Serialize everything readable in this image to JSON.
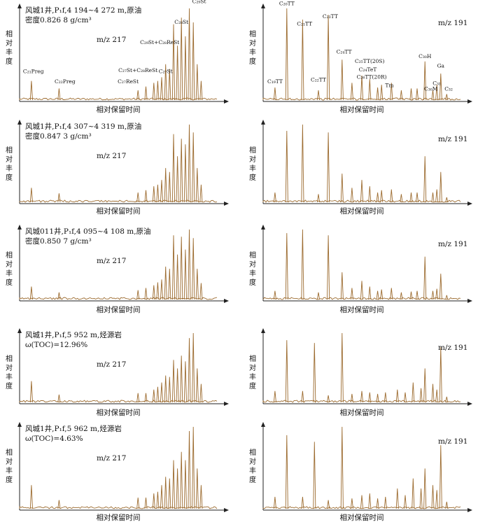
{
  "axis_text": {
    "ylabel_chars": [
      "相",
      "对",
      "丰",
      "度"
    ],
    "xlabel": "相对保留时间"
  },
  "chart_data": [
    {
      "type": "line",
      "panel": "row1-left",
      "info": [
        "风城1井,P₁f,4 194~4 272 m,原油",
        "密度0.826 8 g/cm³"
      ],
      "mz": "m/z 217",
      "xlabel": "相对保留时间",
      "ylabel": "相对丰度",
      "peaks": [
        {
          "x": 0.06,
          "h": 0.22
        },
        {
          "x": 0.2,
          "h": 0.14
        },
        {
          "x": 0.6,
          "h": 0.12
        },
        {
          "x": 0.64,
          "h": 0.16
        },
        {
          "x": 0.68,
          "h": 0.2
        },
        {
          "x": 0.7,
          "h": 0.22
        },
        {
          "x": 0.72,
          "h": 0.26
        },
        {
          "x": 0.74,
          "h": 0.4
        },
        {
          "x": 0.76,
          "h": 0.35
        },
        {
          "x": 0.78,
          "h": 0.83
        },
        {
          "x": 0.8,
          "h": 0.6
        },
        {
          "x": 0.82,
          "h": 0.9
        },
        {
          "x": 0.84,
          "h": 0.7
        },
        {
          "x": 0.86,
          "h": 1.0
        },
        {
          "x": 0.88,
          "h": 0.85
        },
        {
          "x": 0.9,
          "h": 0.4
        },
        {
          "x": 0.92,
          "h": 0.22
        }
      ],
      "peak_labels": [
        {
          "text": "C₂₁Preg",
          "x": 0.07,
          "h": 0.29
        },
        {
          "text": "C₂₂Preg",
          "x": 0.23,
          "h": 0.18
        },
        {
          "text": "C₂₇St+C₂₈ReSt",
          "x": 0.6,
          "h": 0.3
        },
        {
          "text": "C₂₇ReSt",
          "x": 0.55,
          "h": 0.18
        },
        {
          "text": "C₂₉St+C₂₈ReSt",
          "x": 0.71,
          "h": 0.6
        },
        {
          "text": "C₂₇St",
          "x": 0.74,
          "h": 0.29
        },
        {
          "text": "C₂₈St",
          "x": 0.82,
          "h": 0.82
        },
        {
          "text": "C₂₉St",
          "x": 0.91,
          "h": 1.04
        }
      ]
    },
    {
      "type": "line",
      "panel": "row1-right",
      "mz": "m/z 191",
      "xlabel": "相对保留时间",
      "ylabel": "相对丰度",
      "peaks": [
        {
          "x": 0.06,
          "h": 0.15
        },
        {
          "x": 0.12,
          "h": 1.0
        },
        {
          "x": 0.2,
          "h": 0.88
        },
        {
          "x": 0.28,
          "h": 0.12
        },
        {
          "x": 0.33,
          "h": 0.93
        },
        {
          "x": 0.4,
          "h": 0.45
        },
        {
          "x": 0.45,
          "h": 0.2
        },
        {
          "x": 0.5,
          "h": 0.28
        },
        {
          "x": 0.54,
          "h": 0.24
        },
        {
          "x": 0.58,
          "h": 0.15
        },
        {
          "x": 0.6,
          "h": 0.18
        },
        {
          "x": 0.65,
          "h": 0.2
        },
        {
          "x": 0.7,
          "h": 0.12
        },
        {
          "x": 0.75,
          "h": 0.14
        },
        {
          "x": 0.78,
          "h": 0.14
        },
        {
          "x": 0.82,
          "h": 0.43
        },
        {
          "x": 0.86,
          "h": 0.12
        },
        {
          "x": 0.88,
          "h": 0.18
        },
        {
          "x": 0.9,
          "h": 0.3
        },
        {
          "x": 0.93,
          "h": 0.08
        }
      ],
      "peak_labels": [
        {
          "text": "C₁₉TT",
          "x": 0.06,
          "h": 0.18
        },
        {
          "text": "C₂₀TT",
          "x": 0.12,
          "h": 1.02
        },
        {
          "text": "C₂₁TT",
          "x": 0.21,
          "h": 0.8
        },
        {
          "text": "C₂₂TT",
          "x": 0.28,
          "h": 0.2
        },
        {
          "text": "C₂₃TT",
          "x": 0.34,
          "h": 0.88
        },
        {
          "text": "C₂₄TT",
          "x": 0.41,
          "h": 0.5
        },
        {
          "text": "C₂₅TT(20S)",
          "x": 0.54,
          "h": 0.4
        },
        {
          "text": "C₂₄TeT",
          "x": 0.53,
          "h": 0.31
        },
        {
          "text": "C₂₆TT(20R)",
          "x": 0.55,
          "h": 0.23
        },
        {
          "text": "Tm",
          "x": 0.64,
          "h": 0.14
        },
        {
          "text": "C₃₀H",
          "x": 0.82,
          "h": 0.45
        },
        {
          "text": "Ga",
          "x": 0.9,
          "h": 0.35
        },
        {
          "text": "C₃₀M",
          "x": 0.85,
          "h": 0.1
        },
        {
          "text": "C₃₁",
          "x": 0.88,
          "h": 0.16
        },
        {
          "text": "C₃₂",
          "x": 0.94,
          "h": 0.1
        }
      ]
    },
    {
      "type": "line",
      "panel": "row2-left",
      "info": [
        "风城1井,P₁f,4 307~4 319 m,原油",
        "密度0.847 3 g/cm³"
      ],
      "mz": "m/z 217",
      "xlabel": "相对保留时间",
      "ylabel": "相对丰度",
      "peaks": [
        {
          "x": 0.06,
          "h": 0.2
        },
        {
          "x": 0.2,
          "h": 0.13
        },
        {
          "x": 0.6,
          "h": 0.14
        },
        {
          "x": 0.64,
          "h": 0.17
        },
        {
          "x": 0.68,
          "h": 0.22
        },
        {
          "x": 0.7,
          "h": 0.24
        },
        {
          "x": 0.72,
          "h": 0.3
        },
        {
          "x": 0.74,
          "h": 0.45
        },
        {
          "x": 0.76,
          "h": 0.4
        },
        {
          "x": 0.78,
          "h": 0.88
        },
        {
          "x": 0.8,
          "h": 0.6
        },
        {
          "x": 0.82,
          "h": 0.82
        },
        {
          "x": 0.84,
          "h": 0.75
        },
        {
          "x": 0.86,
          "h": 1.0
        },
        {
          "x": 0.88,
          "h": 0.9
        },
        {
          "x": 0.9,
          "h": 0.45
        },
        {
          "x": 0.92,
          "h": 0.24
        }
      ]
    },
    {
      "type": "line",
      "panel": "row2-right",
      "mz": "m/z 191",
      "xlabel": "相对保留时间",
      "ylabel": "相对丰度",
      "peaks": [
        {
          "x": 0.06,
          "h": 0.14
        },
        {
          "x": 0.12,
          "h": 0.92
        },
        {
          "x": 0.2,
          "h": 1.0
        },
        {
          "x": 0.28,
          "h": 0.12
        },
        {
          "x": 0.33,
          "h": 0.9
        },
        {
          "x": 0.4,
          "h": 0.38
        },
        {
          "x": 0.45,
          "h": 0.2
        },
        {
          "x": 0.5,
          "h": 0.3
        },
        {
          "x": 0.54,
          "h": 0.22
        },
        {
          "x": 0.58,
          "h": 0.14
        },
        {
          "x": 0.6,
          "h": 0.17
        },
        {
          "x": 0.65,
          "h": 0.18
        },
        {
          "x": 0.7,
          "h": 0.12
        },
        {
          "x": 0.75,
          "h": 0.14
        },
        {
          "x": 0.78,
          "h": 0.14
        },
        {
          "x": 0.82,
          "h": 0.6
        },
        {
          "x": 0.86,
          "h": 0.14
        },
        {
          "x": 0.88,
          "h": 0.18
        },
        {
          "x": 0.9,
          "h": 0.4
        },
        {
          "x": 0.93,
          "h": 0.08
        }
      ]
    },
    {
      "type": "line",
      "panel": "row3-left",
      "info": [
        "风城011井,P₁f,4 095~4 108 m,原油",
        "密度0.850 7 g/cm³"
      ],
      "mz": "m/z 217",
      "xlabel": "相对保留时间",
      "ylabel": "相对丰度",
      "peaks": [
        {
          "x": 0.06,
          "h": 0.2
        },
        {
          "x": 0.2,
          "h": 0.12
        },
        {
          "x": 0.6,
          "h": 0.15
        },
        {
          "x": 0.64,
          "h": 0.18
        },
        {
          "x": 0.68,
          "h": 0.22
        },
        {
          "x": 0.7,
          "h": 0.26
        },
        {
          "x": 0.72,
          "h": 0.3
        },
        {
          "x": 0.74,
          "h": 0.48
        },
        {
          "x": 0.76,
          "h": 0.45
        },
        {
          "x": 0.78,
          "h": 0.92
        },
        {
          "x": 0.8,
          "h": 0.65
        },
        {
          "x": 0.82,
          "h": 0.9
        },
        {
          "x": 0.84,
          "h": 0.72
        },
        {
          "x": 0.86,
          "h": 1.0
        },
        {
          "x": 0.88,
          "h": 0.88
        },
        {
          "x": 0.9,
          "h": 0.45
        },
        {
          "x": 0.92,
          "h": 0.25
        }
      ]
    },
    {
      "type": "line",
      "panel": "row3-right",
      "mz": "m/z 191",
      "xlabel": "相对保留时间",
      "ylabel": "相对丰度",
      "peaks": [
        {
          "x": 0.06,
          "h": 0.14
        },
        {
          "x": 0.12,
          "h": 0.95
        },
        {
          "x": 0.2,
          "h": 1.0
        },
        {
          "x": 0.28,
          "h": 0.12
        },
        {
          "x": 0.33,
          "h": 0.92
        },
        {
          "x": 0.4,
          "h": 0.4
        },
        {
          "x": 0.45,
          "h": 0.18
        },
        {
          "x": 0.5,
          "h": 0.28
        },
        {
          "x": 0.54,
          "h": 0.2
        },
        {
          "x": 0.58,
          "h": 0.14
        },
        {
          "x": 0.6,
          "h": 0.16
        },
        {
          "x": 0.65,
          "h": 0.18
        },
        {
          "x": 0.7,
          "h": 0.12
        },
        {
          "x": 0.75,
          "h": 0.13
        },
        {
          "x": 0.78,
          "h": 0.14
        },
        {
          "x": 0.82,
          "h": 0.62
        },
        {
          "x": 0.86,
          "h": 0.14
        },
        {
          "x": 0.88,
          "h": 0.17
        },
        {
          "x": 0.9,
          "h": 0.38
        },
        {
          "x": 0.93,
          "h": 0.08
        }
      ]
    },
    {
      "type": "line",
      "panel": "row4-left",
      "info": [
        "风城1井,P₁f,5 952 m,烃源岩",
        "ω(TOC)=12.96%"
      ],
      "mz": "m/z 217",
      "xlabel": "相对保留时间",
      "ylabel": "相对丰度",
      "peaks": [
        {
          "x": 0.06,
          "h": 0.32
        },
        {
          "x": 0.2,
          "h": 0.13
        },
        {
          "x": 0.6,
          "h": 0.15
        },
        {
          "x": 0.64,
          "h": 0.15
        },
        {
          "x": 0.68,
          "h": 0.2
        },
        {
          "x": 0.7,
          "h": 0.24
        },
        {
          "x": 0.72,
          "h": 0.3
        },
        {
          "x": 0.74,
          "h": 0.4
        },
        {
          "x": 0.76,
          "h": 0.38
        },
        {
          "x": 0.78,
          "h": 0.62
        },
        {
          "x": 0.8,
          "h": 0.5
        },
        {
          "x": 0.82,
          "h": 0.68
        },
        {
          "x": 0.84,
          "h": 0.6
        },
        {
          "x": 0.86,
          "h": 0.93
        },
        {
          "x": 0.88,
          "h": 1.0
        },
        {
          "x": 0.9,
          "h": 0.5
        },
        {
          "x": 0.92,
          "h": 0.28
        }
      ]
    },
    {
      "type": "line",
      "panel": "row4-right",
      "mz": "m/z 191",
      "xlabel": "相对保留时间",
      "ylabel": "相对丰度",
      "peaks": [
        {
          "x": 0.06,
          "h": 0.18
        },
        {
          "x": 0.12,
          "h": 0.9
        },
        {
          "x": 0.2,
          "h": 0.18
        },
        {
          "x": 0.26,
          "h": 0.86
        },
        {
          "x": 0.33,
          "h": 0.12
        },
        {
          "x": 0.4,
          "h": 1.0
        },
        {
          "x": 0.45,
          "h": 0.14
        },
        {
          "x": 0.5,
          "h": 0.18
        },
        {
          "x": 0.54,
          "h": 0.16
        },
        {
          "x": 0.58,
          "h": 0.14
        },
        {
          "x": 0.62,
          "h": 0.16
        },
        {
          "x": 0.68,
          "h": 0.2
        },
        {
          "x": 0.72,
          "h": 0.16
        },
        {
          "x": 0.76,
          "h": 0.3
        },
        {
          "x": 0.8,
          "h": 0.22
        },
        {
          "x": 0.82,
          "h": 0.5
        },
        {
          "x": 0.86,
          "h": 0.28
        },
        {
          "x": 0.88,
          "h": 0.2
        },
        {
          "x": 0.9,
          "h": 0.8
        },
        {
          "x": 0.93,
          "h": 0.1
        }
      ]
    },
    {
      "type": "line",
      "panel": "row5-left",
      "info": [
        "风城1井,P₁f,5 962 m,烃源岩",
        "ω(TOC)=4.63%"
      ],
      "mz": "m/z 217",
      "xlabel": "相对保留时间",
      "ylabel": "相对丰度",
      "peaks": [
        {
          "x": 0.06,
          "h": 0.3
        },
        {
          "x": 0.2,
          "h": 0.12
        },
        {
          "x": 0.6,
          "h": 0.15
        },
        {
          "x": 0.64,
          "h": 0.15
        },
        {
          "x": 0.68,
          "h": 0.2
        },
        {
          "x": 0.7,
          "h": 0.22
        },
        {
          "x": 0.72,
          "h": 0.3
        },
        {
          "x": 0.74,
          "h": 0.4
        },
        {
          "x": 0.76,
          "h": 0.38
        },
        {
          "x": 0.78,
          "h": 0.6
        },
        {
          "x": 0.8,
          "h": 0.5
        },
        {
          "x": 0.82,
          "h": 0.7
        },
        {
          "x": 0.84,
          "h": 0.6
        },
        {
          "x": 0.86,
          "h": 0.95
        },
        {
          "x": 0.88,
          "h": 1.0
        },
        {
          "x": 0.9,
          "h": 0.5
        },
        {
          "x": 0.92,
          "h": 0.3
        }
      ]
    },
    {
      "type": "line",
      "panel": "row5-right",
      "mz": "m/z 191",
      "xlabel": "相对保留时间",
      "ylabel": "相对丰度",
      "peaks": [
        {
          "x": 0.06,
          "h": 0.16
        },
        {
          "x": 0.12,
          "h": 0.9
        },
        {
          "x": 0.2,
          "h": 0.16
        },
        {
          "x": 0.26,
          "h": 0.82
        },
        {
          "x": 0.33,
          "h": 0.12
        },
        {
          "x": 0.4,
          "h": 1.0
        },
        {
          "x": 0.45,
          "h": 0.14
        },
        {
          "x": 0.5,
          "h": 0.18
        },
        {
          "x": 0.54,
          "h": 0.2
        },
        {
          "x": 0.58,
          "h": 0.14
        },
        {
          "x": 0.62,
          "h": 0.16
        },
        {
          "x": 0.68,
          "h": 0.26
        },
        {
          "x": 0.72,
          "h": 0.18
        },
        {
          "x": 0.76,
          "h": 0.38
        },
        {
          "x": 0.8,
          "h": 0.26
        },
        {
          "x": 0.82,
          "h": 0.5
        },
        {
          "x": 0.86,
          "h": 0.3
        },
        {
          "x": 0.88,
          "h": 0.24
        },
        {
          "x": 0.9,
          "h": 0.78
        },
        {
          "x": 0.93,
          "h": 0.1
        }
      ]
    }
  ]
}
